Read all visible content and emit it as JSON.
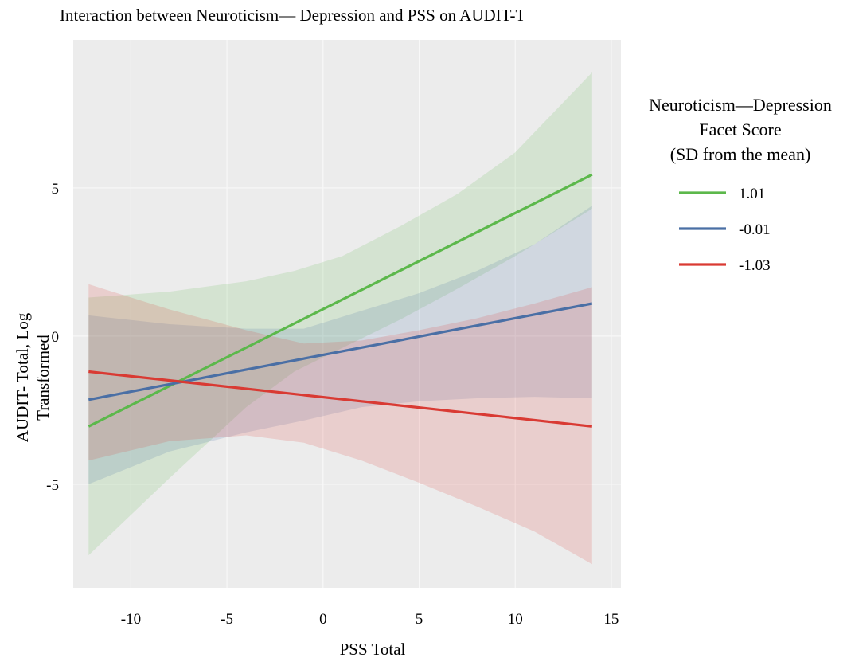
{
  "chart_data": {
    "type": "line",
    "title": "Interaction between Neuroticism— Depression and PSS on AUDIT-T",
    "xlabel": "PSS Total",
    "ylabel_line1": "AUDIT- Total, Log",
    "ylabel_line2": "Transformed",
    "xlim": [
      -13,
      15.5
    ],
    "ylim": [
      -8.5,
      10
    ],
    "x_ticks": [
      -10,
      -5,
      0,
      5,
      10,
      15
    ],
    "x_tick_labels": [
      "-10",
      "-5",
      "0",
      "5",
      "10",
      "15"
    ],
    "y_ticks": [
      -5,
      0,
      5
    ],
    "y_tick_labels": [
      "-5",
      "0",
      "5"
    ],
    "grid": true,
    "legend": {
      "title_line1": "Neuroticism—Depression",
      "title_line2": "Facet Score",
      "title_line3": "(SD from the mean)",
      "placement": "right"
    },
    "series": [
      {
        "name": "1.01",
        "color": "#5cb84b",
        "x": [
          -12.2,
          14
        ],
        "y": [
          -3.05,
          5.45
        ],
        "ci_x": [
          -12.2,
          -8,
          -4,
          -1.5,
          1,
          4,
          7,
          10,
          14
        ],
        "ci_lower": [
          -7.4,
          -4.8,
          -2.4,
          -1.2,
          -0.4,
          0.55,
          1.6,
          2.7,
          4.3
        ],
        "ci_upper": [
          1.3,
          1.5,
          1.85,
          2.2,
          2.7,
          3.7,
          4.8,
          6.2,
          8.9
        ]
      },
      {
        "name": "-0.01",
        "color": "#4a6fa5",
        "x": [
          -12.2,
          14
        ],
        "y": [
          -2.15,
          1.1
        ],
        "ci_x": [
          -12.2,
          -8,
          -4,
          -1,
          2,
          5,
          8,
          11,
          14
        ],
        "ci_lower": [
          -5.0,
          -3.9,
          -3.25,
          -2.85,
          -2.4,
          -2.2,
          -2.1,
          -2.05,
          -2.1
        ],
        "ci_upper": [
          0.7,
          0.4,
          0.25,
          0.25,
          0.85,
          1.45,
          2.2,
          3.1,
          4.4
        ]
      },
      {
        "name": "-1.03",
        "color": "#d93a33",
        "x": [
          -12.2,
          14
        ],
        "y": [
          -1.2,
          -3.05
        ],
        "ci_x": [
          -12.2,
          -8,
          -4,
          -1,
          2,
          5,
          8,
          11,
          14
        ],
        "ci_lower": [
          -4.2,
          -3.55,
          -3.35,
          -3.6,
          -4.2,
          -4.95,
          -5.75,
          -6.6,
          -7.7
        ],
        "ci_upper": [
          1.75,
          0.9,
          0.2,
          -0.25,
          -0.15,
          0.2,
          0.6,
          1.1,
          1.65
        ]
      }
    ]
  }
}
